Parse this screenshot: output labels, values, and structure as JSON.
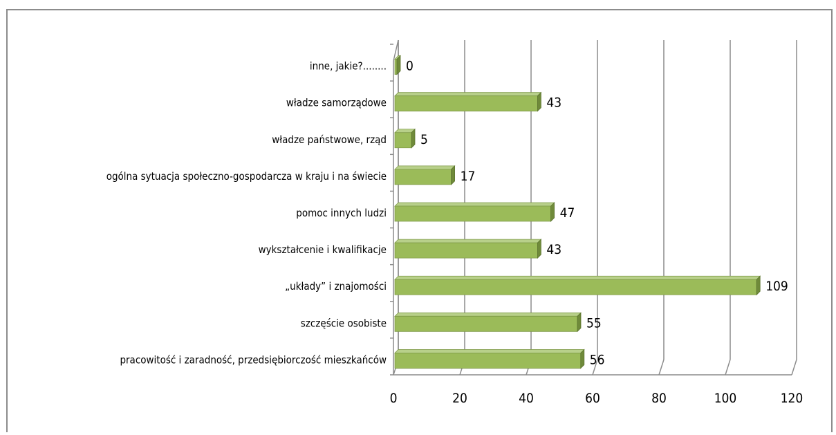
{
  "chart_data": {
    "type": "bar",
    "orientation": "horizontal",
    "style": "3d-clustered-bar",
    "bar_color": "#9bbb59",
    "grid": true,
    "legend": "none",
    "title": "",
    "xlim": [
      0,
      120
    ],
    "xticks": [
      0,
      20,
      40,
      60,
      80,
      100,
      120
    ],
    "categories": [
      "inne, jakie?........",
      "władze samorządowe",
      "władze państwowe, rząd",
      "ogólna sytuacja społeczno-gospodarcza w kraju i na świecie",
      "pomoc innych ludzi",
      "wykształcenie i kwalifikacje",
      "„układy” i znajomości",
      "szczęście osobiste",
      "pracowitość i zaradność, przedsiębiorczość mieszkańców"
    ],
    "values": [
      0,
      43,
      5,
      17,
      47,
      43,
      109,
      55,
      56
    ]
  }
}
